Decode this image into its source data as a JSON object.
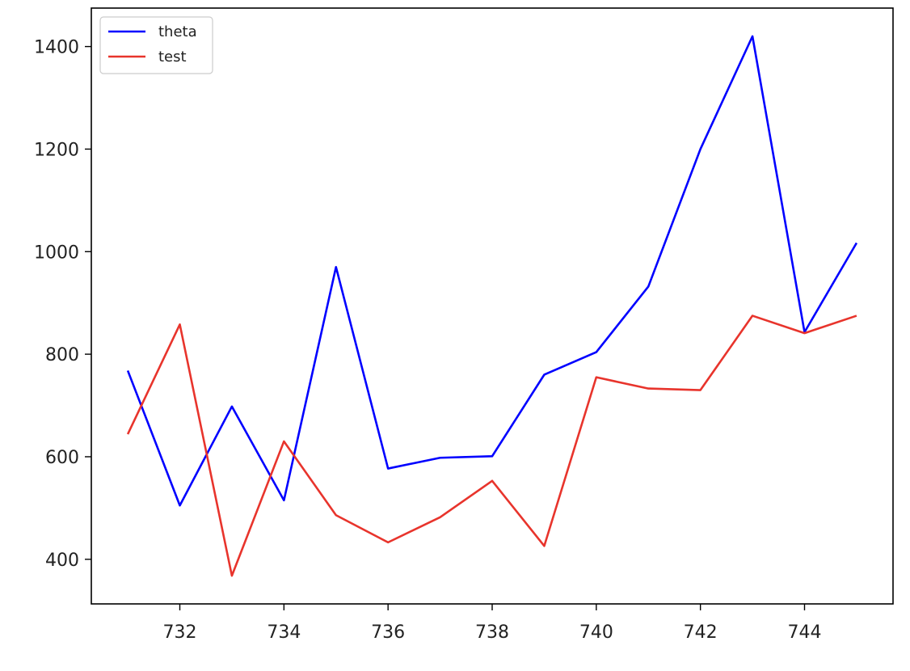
{
  "chart_data": {
    "type": "line",
    "title": "",
    "xlabel": "",
    "ylabel": "",
    "x": [
      731,
      732,
      733,
      734,
      735,
      736,
      737,
      738,
      739,
      740,
      741,
      742,
      743,
      744,
      745
    ],
    "series": [
      {
        "name": "theta",
        "color": "#0000ff",
        "values": [
          768,
          505,
          698,
          515,
          970,
          577,
          598,
          601,
          760,
          804,
          932,
          1200,
          1420,
          843,
          1017
        ]
      },
      {
        "name": "test",
        "color": "#e8342c",
        "values": [
          644,
          858,
          368,
          630,
          486,
          433,
          482,
          553,
          426,
          755,
          733,
          730,
          875,
          841,
          875
        ]
      }
    ],
    "xticks": [
      732,
      734,
      736,
      738,
      740,
      742,
      744
    ],
    "yticks": [
      400,
      600,
      800,
      1000,
      1200,
      1400
    ],
    "xlim": [
      730.3,
      745.7
    ],
    "ylim": [
      313,
      1475
    ],
    "grid": false,
    "legend_position": "top-left"
  }
}
